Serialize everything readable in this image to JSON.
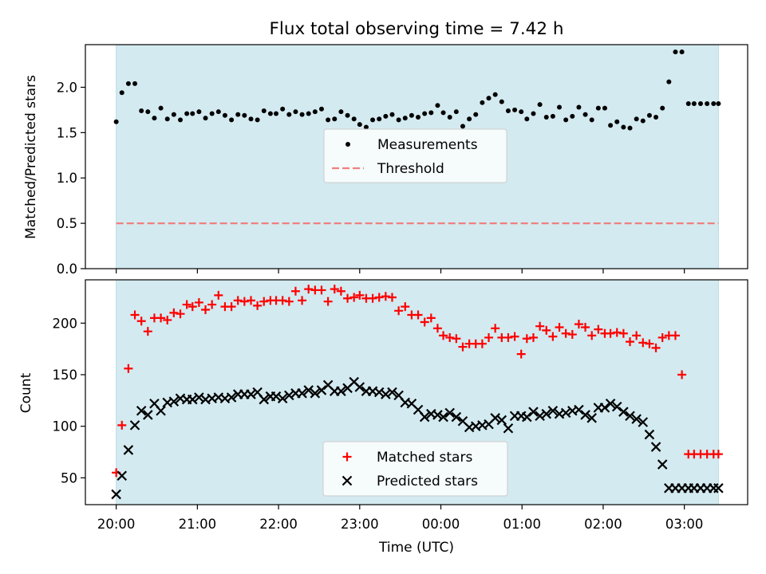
{
  "chart_data": {
    "title": "Flux total observing time = 7.42 h",
    "xlabel": "Time (UTC)",
    "x_unit": "hours since 20:00 UTC",
    "xlim": [
      -0.38,
      7.78
    ],
    "x_ticks": [
      {
        "x": 0,
        "label": "20:00"
      },
      {
        "x": 1,
        "label": "21:00"
      },
      {
        "x": 2,
        "label": "22:00"
      },
      {
        "x": 3,
        "label": "23:00"
      },
      {
        "x": 4,
        "label": "00:00"
      },
      {
        "x": 5,
        "label": "01:00"
      },
      {
        "x": 6,
        "label": "02:00"
      },
      {
        "x": 7,
        "label": "03:00"
      }
    ],
    "observing_window": [
      0,
      7.42
    ],
    "window_color": "#d3eaf0",
    "top": {
      "type": "scatter",
      "ylabel": "Matched/Predicted stars",
      "ylim": [
        0,
        2.47
      ],
      "y_ticks": [
        0.0,
        0.5,
        1.0,
        1.5,
        2.0
      ],
      "y_tick_labels": [
        "0.0",
        "0.5",
        "1.0",
        "1.5",
        "2.0"
      ],
      "threshold": 0.5,
      "legend": {
        "placement": "center",
        "items": [
          {
            "label": "Measurements",
            "color": "#000000",
            "marker": "dot"
          },
          {
            "label": "Threshold",
            "color": "#f08080",
            "marker": "dashed-line"
          }
        ]
      },
      "series": [
        {
          "name": "Measurements",
          "color": "#000000",
          "x": [
            0.0,
            0.07,
            0.15,
            0.23,
            0.31,
            0.39,
            0.47,
            0.55,
            0.63,
            0.71,
            0.79,
            0.87,
            0.94,
            1.02,
            1.1,
            1.18,
            1.26,
            1.34,
            1.42,
            1.5,
            1.58,
            1.66,
            1.74,
            1.82,
            1.9,
            1.97,
            2.05,
            2.13,
            2.21,
            2.29,
            2.37,
            2.45,
            2.53,
            2.61,
            2.69,
            2.77,
            2.85,
            2.93,
            3.0,
            3.08,
            3.16,
            3.24,
            3.32,
            3.4,
            3.48,
            3.56,
            3.64,
            3.72,
            3.8,
            3.88,
            3.96,
            4.03,
            4.11,
            4.19,
            4.27,
            4.35,
            4.43,
            4.51,
            4.59,
            4.67,
            4.75,
            4.83,
            4.91,
            4.99,
            5.06,
            5.14,
            5.22,
            5.3,
            5.38,
            5.46,
            5.54,
            5.62,
            5.7,
            5.78,
            5.86,
            5.94,
            6.02,
            6.09,
            6.17,
            6.25,
            6.33,
            6.41,
            6.49,
            6.57,
            6.65,
            6.73,
            6.81,
            6.89,
            6.97,
            7.05,
            7.12,
            7.2,
            7.28,
            7.36,
            7.42
          ],
          "y": [
            1.62,
            1.94,
            2.04,
            2.04,
            1.74,
            1.73,
            1.66,
            1.77,
            1.65,
            1.7,
            1.64,
            1.71,
            1.71,
            1.73,
            1.66,
            1.71,
            1.73,
            1.69,
            1.64,
            1.7,
            1.69,
            1.65,
            1.64,
            1.74,
            1.71,
            1.71,
            1.76,
            1.7,
            1.73,
            1.7,
            1.71,
            1.73,
            1.76,
            1.64,
            1.65,
            1.73,
            1.69,
            1.65,
            1.59,
            1.56,
            1.64,
            1.65,
            1.68,
            1.7,
            1.64,
            1.66,
            1.69,
            1.67,
            1.71,
            1.72,
            1.8,
            1.72,
            1.67,
            1.73,
            1.57,
            1.65,
            1.7,
            1.83,
            1.88,
            1.92,
            1.84,
            1.74,
            1.75,
            1.73,
            1.65,
            1.71,
            1.81,
            1.67,
            1.68,
            1.78,
            1.64,
            1.68,
            1.78,
            1.7,
            1.64,
            1.77,
            1.77,
            1.58,
            1.62,
            1.56,
            1.55,
            1.65,
            1.63,
            1.69,
            1.67,
            1.77,
            2.06,
            2.39,
            2.39,
            1.82,
            1.82,
            1.82,
            1.82,
            1.82,
            1.82
          ]
        }
      ]
    },
    "bottom": {
      "type": "scatter",
      "ylabel": "Count",
      "ylim": [
        24,
        242
      ],
      "y_ticks": [
        50,
        100,
        150,
        200
      ],
      "y_tick_labels": [
        "50",
        "100",
        "150",
        "200"
      ],
      "legend": {
        "placement": "lower center",
        "items": [
          {
            "label": "Matched stars",
            "color": "#ff0000",
            "marker": "plus"
          },
          {
            "label": "Predicted stars",
            "color": "#000000",
            "marker": "x"
          }
        ]
      },
      "series": [
        {
          "name": "Matched stars",
          "color": "#ff0000",
          "marker": "plus",
          "x": [
            0.0,
            0.07,
            0.15,
            0.23,
            0.31,
            0.39,
            0.47,
            0.55,
            0.63,
            0.71,
            0.79,
            0.87,
            0.94,
            1.02,
            1.1,
            1.18,
            1.26,
            1.34,
            1.42,
            1.5,
            1.58,
            1.66,
            1.74,
            1.82,
            1.9,
            1.97,
            2.05,
            2.13,
            2.21,
            2.29,
            2.37,
            2.45,
            2.53,
            2.61,
            2.69,
            2.77,
            2.85,
            2.93,
            3.0,
            3.08,
            3.16,
            3.24,
            3.32,
            3.4,
            3.48,
            3.56,
            3.64,
            3.72,
            3.8,
            3.88,
            3.96,
            4.03,
            4.11,
            4.19,
            4.27,
            4.35,
            4.43,
            4.51,
            4.59,
            4.67,
            4.75,
            4.83,
            4.91,
            4.99,
            5.06,
            5.14,
            5.22,
            5.3,
            5.38,
            5.46,
            5.54,
            5.62,
            5.7,
            5.78,
            5.86,
            5.94,
            6.02,
            6.09,
            6.17,
            6.25,
            6.33,
            6.41,
            6.49,
            6.57,
            6.65,
            6.73,
            6.81,
            6.89,
            6.97,
            7.05,
            7.12,
            7.2,
            7.28,
            7.36,
            7.42
          ],
          "y": [
            55,
            101,
            156,
            208,
            202,
            192,
            205,
            205,
            203,
            210,
            209,
            218,
            216,
            220,
            213,
            218,
            227,
            216,
            216,
            222,
            221,
            222,
            217,
            221,
            222,
            222,
            222,
            221,
            231,
            222,
            233,
            232,
            232,
            221,
            233,
            231,
            224,
            225,
            227,
            224,
            224,
            225,
            226,
            225,
            212,
            216,
            208,
            208,
            201,
            205,
            195,
            188,
            186,
            185,
            177,
            180,
            180,
            180,
            186,
            195,
            186,
            186,
            187,
            170,
            185,
            186,
            197,
            193,
            187,
            196,
            190,
            189,
            199,
            196,
            188,
            194,
            190,
            190,
            191,
            190,
            182,
            188,
            181,
            180,
            176,
            186,
            188,
            188,
            150,
            73,
            73,
            73,
            73,
            73,
            73
          ]
        },
        {
          "name": "Predicted stars",
          "color": "#000000",
          "marker": "x",
          "x": [
            0.0,
            0.07,
            0.15,
            0.23,
            0.31,
            0.39,
            0.47,
            0.55,
            0.63,
            0.71,
            0.79,
            0.87,
            0.94,
            1.02,
            1.1,
            1.18,
            1.26,
            1.34,
            1.42,
            1.5,
            1.58,
            1.66,
            1.74,
            1.82,
            1.9,
            1.97,
            2.05,
            2.13,
            2.21,
            2.29,
            2.37,
            2.45,
            2.53,
            2.61,
            2.69,
            2.77,
            2.85,
            2.93,
            3.0,
            3.08,
            3.16,
            3.24,
            3.32,
            3.4,
            3.48,
            3.56,
            3.64,
            3.72,
            3.8,
            3.88,
            3.96,
            4.03,
            4.11,
            4.19,
            4.27,
            4.35,
            4.43,
            4.51,
            4.59,
            4.67,
            4.75,
            4.83,
            4.91,
            4.99,
            5.06,
            5.14,
            5.22,
            5.3,
            5.38,
            5.46,
            5.54,
            5.62,
            5.7,
            5.78,
            5.86,
            5.94,
            6.02,
            6.09,
            6.17,
            6.25,
            6.33,
            6.41,
            6.49,
            6.57,
            6.65,
            6.73,
            6.81,
            6.89,
            6.97,
            7.05,
            7.12,
            7.2,
            7.28,
            7.36,
            7.42
          ],
          "y": [
            34,
            52,
            77,
            101,
            115,
            111,
            122,
            115,
            123,
            124,
            127,
            126,
            126,
            128,
            126,
            127,
            128,
            127,
            128,
            131,
            131,
            131,
            133,
            126,
            129,
            129,
            127,
            130,
            132,
            132,
            135,
            132,
            135,
            140,
            134,
            134,
            137,
            143,
            138,
            134,
            134,
            133,
            131,
            133,
            130,
            123,
            122,
            116,
            109,
            112,
            111,
            109,
            113,
            109,
            105,
            99,
            100,
            101,
            102,
            108,
            106,
            98,
            110,
            110,
            109,
            114,
            110,
            112,
            115,
            112,
            113,
            115,
            116,
            111,
            108,
            118,
            118,
            122,
            119,
            114,
            110,
            107,
            104,
            92,
            80,
            63,
            40,
            40,
            40,
            40,
            40,
            40,
            40,
            40,
            40
          ]
        }
      ]
    }
  }
}
